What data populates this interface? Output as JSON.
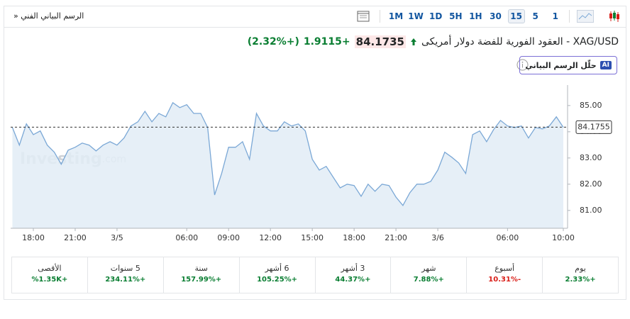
{
  "toolbar": {
    "title": "الرسم البياني الفني",
    "expand": "»",
    "timeframes": [
      "1M",
      "1W",
      "1D",
      "5H",
      "1H",
      "30",
      "15",
      "5",
      "1"
    ],
    "selected_index": 6
  },
  "header": {
    "instrument": "XAG/USD - العقود الفورية للفضة دولار أمريكى",
    "price": "84.1735",
    "change": "+1.9115",
    "change_percent": "(+2.32%)"
  },
  "ai_button": {
    "badge": "AI",
    "label": "حلّل الرسم البياني"
  },
  "watermark": {
    "brand": "Investing",
    "suffix": ".com"
  },
  "chart_data": {
    "type": "line",
    "categories": [
      null,
      null,
      null,
      "18:00",
      null,
      null,
      null,
      null,
      null,
      "21:00",
      null,
      null,
      null,
      null,
      null,
      "3/5",
      null,
      null,
      null,
      null,
      null,
      null,
      null,
      null,
      null,
      "06:00",
      null,
      null,
      null,
      null,
      null,
      "09:00",
      null,
      null,
      null,
      null,
      null,
      "12:00",
      null,
      null,
      null,
      null,
      null,
      "15:00",
      null,
      null,
      null,
      null,
      null,
      "18:00",
      null,
      null,
      null,
      null,
      null,
      "21:00",
      null,
      null,
      null,
      null,
      null,
      "3/6",
      null,
      null,
      null,
      null,
      null,
      null,
      null,
      null,
      null,
      "06:00",
      null,
      null,
      null,
      null,
      null,
      null,
      null,
      "10:00"
    ],
    "values": [
      84.16,
      83.49,
      84.3,
      83.89,
      84.03,
      83.49,
      83.22,
      82.76,
      83.3,
      83.41,
      83.57,
      83.49,
      83.27,
      83.49,
      83.62,
      83.49,
      83.76,
      84.22,
      84.38,
      84.78,
      84.38,
      84.7,
      84.57,
      85.11,
      84.92,
      85.03,
      84.7,
      84.7,
      84.16,
      81.59,
      82.41,
      83.41,
      83.41,
      83.62,
      82.95,
      84.7,
      84.22,
      84.03,
      84.03,
      84.38,
      84.22,
      84.3,
      84.03,
      82.95,
      82.54,
      82.68,
      82.27,
      81.86,
      82.0,
      81.95,
      81.54,
      82.0,
      81.73,
      82.0,
      81.95,
      81.51,
      81.19,
      81.68,
      82.0,
      82.0,
      82.11,
      82.54,
      83.22,
      83.03,
      82.81,
      82.41,
      83.89,
      84.03,
      83.62,
      84.08,
      84.43,
      84.22,
      84.16,
      84.22,
      83.76,
      84.16,
      84.11,
      84.22,
      84.57,
      84.17
    ],
    "color": "#7ba8d6",
    "area_color": "#e2ecf6",
    "ylim": [
      80.32,
      85.78
    ],
    "yticks": [
      {
        "value": 81,
        "label": "81.00"
      },
      {
        "value": 82,
        "label": "82.00"
      },
      {
        "value": 83,
        "label": "83.00"
      },
      {
        "value": 84,
        "label": "84.00"
      },
      {
        "value": 85,
        "label": "85.00"
      }
    ],
    "current_price": {
      "value": 84.1755,
      "label": "84.1755"
    }
  },
  "performance": [
    {
      "period": "يوم",
      "change": "+2.33%"
    },
    {
      "period": "أسبوع",
      "change": "-10.31%"
    },
    {
      "period": "شهر",
      "change": "+7.88%"
    },
    {
      "period": "3 أشهر",
      "change": "+44.37%"
    },
    {
      "period": "6 أشهر",
      "change": "+105.25%"
    },
    {
      "period": "سنة",
      "change": "+157.99%"
    },
    {
      "period": "5 سنوات",
      "change": "+234.11%"
    },
    {
      "period": "الأقصى",
      "change": "+1.35K%"
    }
  ]
}
